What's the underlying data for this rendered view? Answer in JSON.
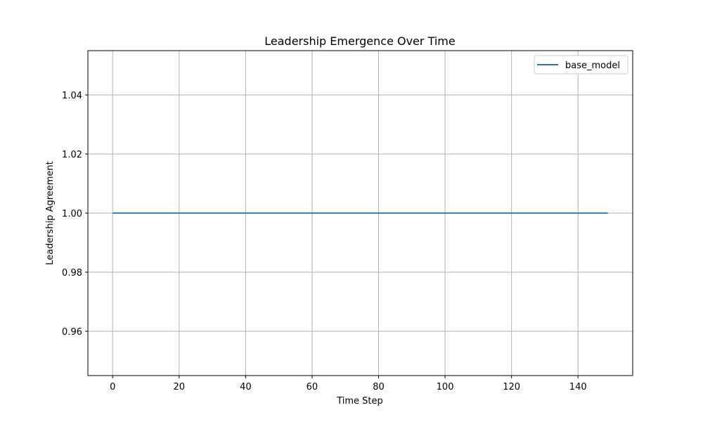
{
  "chart_data": {
    "type": "line",
    "title": "Leadership Emergence Over Time",
    "xlabel": "Time Step",
    "ylabel": "Leadership Agreement",
    "xlim": [
      -7.45,
      156.45
    ],
    "ylim": [
      0.945,
      1.055
    ],
    "xticks": [
      0,
      20,
      40,
      60,
      80,
      100,
      120,
      140
    ],
    "yticks": [
      0.96,
      0.98,
      1.0,
      1.02,
      1.04
    ],
    "xtick_labels": [
      "0",
      "20",
      "40",
      "60",
      "80",
      "100",
      "120",
      "140"
    ],
    "ytick_labels": [
      "0.96",
      "0.98",
      "1.00",
      "1.02",
      "1.04"
    ],
    "grid": true,
    "legend_position": "top-right",
    "series": [
      {
        "name": "base_model",
        "color": "#1f77b4",
        "x": [
          0,
          149
        ],
        "y": [
          1.0,
          1.0
        ]
      }
    ]
  }
}
